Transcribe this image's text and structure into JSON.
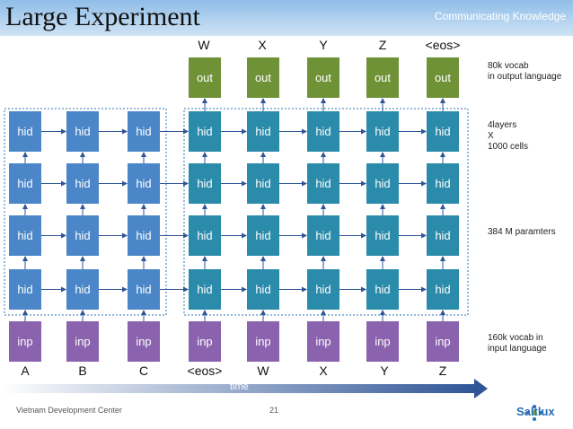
{
  "header": {
    "title": "Large Experiment",
    "tagline": "Communicating Knowledge"
  },
  "diagram": {
    "top_labels": [
      "W",
      "X",
      "Y",
      "Z",
      "<eos>"
    ],
    "bottom_labels": [
      "A",
      "B",
      "C",
      "<eos>",
      "W",
      "X",
      "Y",
      "Z"
    ],
    "out_label": "out",
    "hid_label": "hid",
    "inp_label": "inp",
    "time_label": "time",
    "notes": {
      "vocab_out_line1": "80k vocab",
      "vocab_out_line2": "in output language",
      "layers_line1": "4layers",
      "layers_line2": "X",
      "layers_line3": "1000 cells",
      "params": "384 M paramters",
      "vocab_in_line1": "160k vocab in",
      "vocab_in_line2": "input language"
    },
    "colors": {
      "hidden_encoder": "#4a86c8",
      "hidden_decoder": "#2b8baa",
      "input": "#8a62ad",
      "output": "#6f9236",
      "arrow": "#2f5597"
    }
  },
  "footer": {
    "org": "Vietnam Development Center",
    "page": "21",
    "logo_text": "Saltlux"
  }
}
